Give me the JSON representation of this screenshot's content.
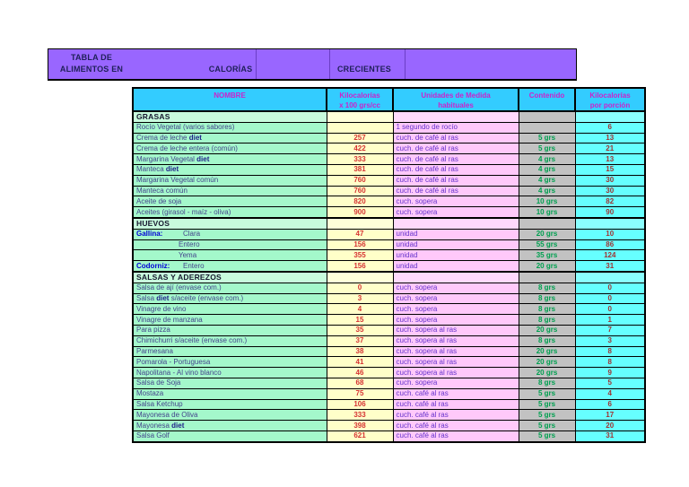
{
  "title_bar": {
    "line1": "TABLA DE",
    "line2": "ALIMENTOS EN",
    "middle": "CALORÍAS",
    "right": "CRECIENTES"
  },
  "colors": {
    "title_bar_bg": "#9966FF",
    "header_bg": "#33CCFF",
    "header_text": "#CC22CC",
    "name_bg": "#A4F8CB",
    "section_bg": "#C8FBDD",
    "kcal_bg": "#FFFFC9",
    "kcal_text": "#D63333",
    "unit_bg": "#FFC9FA",
    "unit_text": "#6633CC",
    "content_bg": "#C2C2C2",
    "content_text": "#00A050",
    "portion_bg": "#66FFFF",
    "portion_text": "#A03333",
    "label_text": "#0000D8"
  },
  "table": {
    "headers": [
      {
        "line1": "NOMBRE",
        "line2": ""
      },
      {
        "line1": "Kilocalorías",
        "line2": "x 100 grs/cc"
      },
      {
        "line1": "Unidades de Medida",
        "line2": "habituales"
      },
      {
        "line1": "Contenido",
        "line2": ""
      },
      {
        "line1": "Kilocalorías",
        "line2": "por porción"
      }
    ],
    "sections": [
      {
        "name": "GRASAS",
        "rows": [
          {
            "pre": "Rocío Vegetal (varios sabores)",
            "kcal": "",
            "unit": "1 segundo de rocío",
            "qty": "",
            "portion": "6"
          },
          {
            "pre": "Crema de leche ",
            "bold": "diet",
            "kcal": "257",
            "unit": "cuch. de café al ras",
            "qty": "5 grs",
            "portion": "13"
          },
          {
            "pre": "Crema de leche entera (común)",
            "kcal": "422",
            "unit": "cuch. de café al ras",
            "qty": "5 grs",
            "portion": "21"
          },
          {
            "pre": "Margarina Vegetal ",
            "bold": "diet",
            "kcal": "333",
            "unit": "cuch. de café al ras",
            "qty": "4 grs",
            "portion": "13"
          },
          {
            "pre": "Manteca ",
            "bold": "diet",
            "kcal": "381",
            "unit": "cuch. de café al ras",
            "qty": "4 grs",
            "portion": "15"
          },
          {
            "pre": "Margarina Vegetal común",
            "kcal": "760",
            "unit": "cuch. de café al ras",
            "qty": "4 grs",
            "portion": "30"
          },
          {
            "pre": "Manteca común",
            "kcal": "760",
            "unit": "cuch. de café al ras",
            "qty": "4 grs",
            "portion": "30"
          },
          {
            "pre": "Aceite de soja",
            "kcal": "820",
            "unit": "cuch. sopera",
            "qty": "10 grs",
            "portion": "82"
          },
          {
            "pre": "Aceites (girasol - maíz - oliva)",
            "kcal": "900",
            "unit": "cuch. sopera",
            "qty": "10 grs",
            "portion": "90"
          }
        ]
      },
      {
        "name": "HUEVOS",
        "rows": [
          {
            "label": "Gallina:",
            "pre": "Clara",
            "kcal": "47",
            "unit": "unidad",
            "qty": "20 grs",
            "portion": "10"
          },
          {
            "indent": true,
            "pre": "Entero",
            "kcal": "156",
            "unit": "unidad",
            "qty": "55 grs",
            "portion": "86"
          },
          {
            "indent": true,
            "pre": "Yema",
            "kcal": "355",
            "unit": "unidad",
            "qty": "35 grs",
            "portion": "124"
          },
          {
            "label": "Codorniz:",
            "pre": "Entero",
            "kcal": "156",
            "unit": "unidad",
            "qty": "20 grs",
            "portion": "31"
          }
        ]
      },
      {
        "name": "SALSAS Y ADEREZOS",
        "rows": [
          {
            "pre": "Salsa de ají (envase com.)",
            "kcal": "0",
            "unit": "cuch. sopera",
            "qty": "8 grs",
            "portion": "0"
          },
          {
            "pre": "Salsa ",
            "bold": "diet",
            "post": " s/aceite (envase com.)",
            "kcal": "3",
            "unit": "cuch. sopera",
            "qty": "8 grs",
            "portion": "0"
          },
          {
            "pre": "Vinagre de vino",
            "kcal": "4",
            "unit": "cuch. sopera",
            "qty": "8 grs",
            "portion": "0"
          },
          {
            "pre": "Vinagre de manzana",
            "kcal": "15",
            "unit": "cuch. sopera",
            "qty": "8 grs",
            "portion": "1"
          },
          {
            "pre": "Para pizza",
            "kcal": "35",
            "unit": "cuch. sopera al ras",
            "qty": "20 grs",
            "portion": "7"
          },
          {
            "pre": "Chimichurri s/aceite (envase com.)",
            "kcal": "37",
            "unit": "cuch. sopera al ras",
            "qty": "8 grs",
            "portion": "3"
          },
          {
            "pre": "Parmesana",
            "kcal": "38",
            "unit": "cuch. sopera al ras",
            "qty": "20 grs",
            "portion": "8"
          },
          {
            "pre": "Pomarola - Portuguesa",
            "kcal": "41",
            "unit": "cuch. sopera al ras",
            "qty": "20 grs",
            "portion": "8"
          },
          {
            "pre": "Napolitana - Al vino blanco",
            "kcal": "46",
            "unit": "cuch. sopera al ras",
            "qty": "20 grs",
            "portion": "9"
          },
          {
            "pre": "Salsa de Soja",
            "kcal": "68",
            "unit": "cuch. sopera",
            "qty": "8 grs",
            "portion": "5"
          },
          {
            "pre": "Mostaza",
            "kcal": "75",
            "unit": "cuch. café al ras",
            "qty": "5 grs",
            "portion": "4"
          },
          {
            "pre": "Salsa Ketchup",
            "kcal": "106",
            "unit": "cuch. café al ras",
            "qty": "5 grs",
            "portion": "6"
          },
          {
            "pre": "Mayonesa de Oliva",
            "kcal": "333",
            "unit": "cuch. café al ras",
            "qty": "5 grs",
            "portion": "17"
          },
          {
            "pre": "Mayonesa ",
            "bold": "diet",
            "kcal": "398",
            "unit": "cuch. café al ras",
            "qty": "5 grs",
            "portion": "20"
          },
          {
            "pre": "Salsa Golf",
            "kcal": "621",
            "unit": "cuch. café al ras",
            "qty": "5 grs",
            "portion": "31"
          }
        ]
      }
    ]
  }
}
